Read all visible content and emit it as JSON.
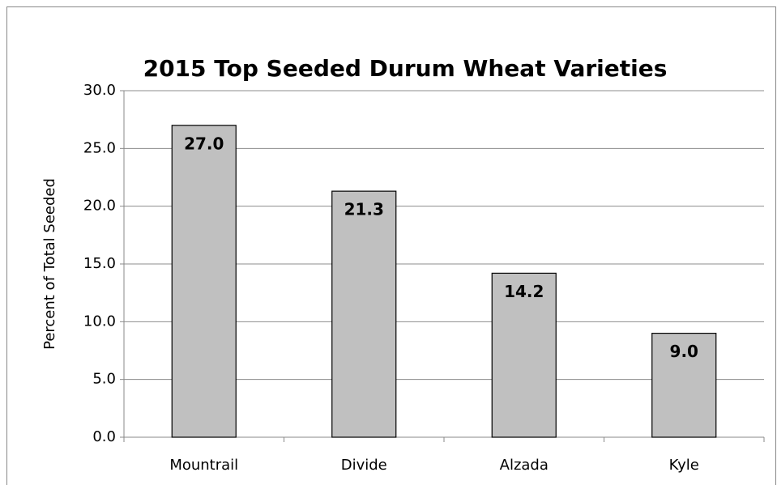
{
  "chart_data": {
    "type": "bar",
    "title": "2015 Top Seeded Durum Wheat Varieties",
    "y_label": "Percent of Total Seeded",
    "categories": [
      "Mountrail",
      "Divide",
      "Alzada",
      "Kyle"
    ],
    "values": [
      27.0,
      21.3,
      14.2,
      9.0
    ],
    "value_labels": [
      "27.0",
      "21.3",
      "14.2",
      "9.0"
    ],
    "color": "#c0c0c0",
    "ylim": [
      0,
      30
    ],
    "yticks": [
      {
        "value": 0,
        "label": "0.0"
      },
      {
        "value": 5,
        "label": "5.0"
      },
      {
        "value": 10,
        "label": "10.0"
      },
      {
        "value": 15,
        "label": "15.0"
      },
      {
        "value": 20,
        "label": "20.0"
      },
      {
        "value": 25,
        "label": "25.0"
      },
      {
        "value": 30,
        "label": "30.0"
      }
    ],
    "grid": true
  }
}
